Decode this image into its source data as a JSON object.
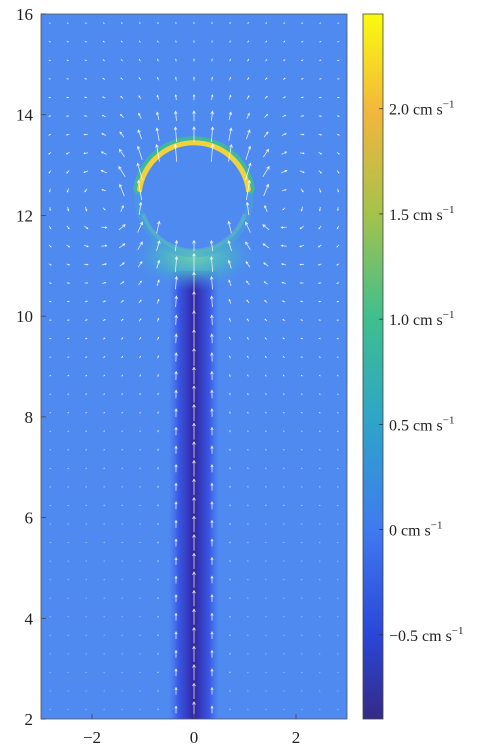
{
  "chart_data": {
    "type": "heatmap",
    "title": "",
    "xlabel": "",
    "ylabel": "",
    "xlim": [
      -3,
      3
    ],
    "ylim": [
      2,
      16
    ],
    "x_ticks": [
      {
        "value": -2,
        "label": "−2"
      },
      {
        "value": 0,
        "label": "0"
      },
      {
        "value": 2,
        "label": "2"
      }
    ],
    "y_ticks": [
      {
        "value": 2,
        "label": "2"
      },
      {
        "value": 4,
        "label": "4"
      },
      {
        "value": 6,
        "label": "6"
      },
      {
        "value": 8,
        "label": "8"
      },
      {
        "value": 10,
        "label": "10"
      },
      {
        "value": 12,
        "label": "12"
      },
      {
        "value": 14,
        "label": "14"
      },
      {
        "value": 16,
        "label": "16"
      }
    ],
    "colorbar": {
      "range": [
        -0.9,
        2.45
      ],
      "colormap": "parula",
      "ticks": [
        {
          "value": 2.0,
          "main": "2.0 cm s",
          "sup": "−1"
        },
        {
          "value": 1.5,
          "main": "1.5 cm s",
          "sup": "−1"
        },
        {
          "value": 1.0,
          "main": "1.0 cm s",
          "sup": "−1"
        },
        {
          "value": 0.5,
          "main": "0.5 cm s",
          "sup": "−1"
        },
        {
          "value": 0.0,
          "main": "0 cm s",
          "sup": "−1"
        },
        {
          "value": -0.5,
          "main": "−0.5 cm s",
          "sup": "−1"
        }
      ]
    },
    "background_value": 0.0,
    "features": {
      "bubble": {
        "center_x": 0,
        "center_y": 12.35,
        "radius": 1.05,
        "rim_peak_value": 2.3
      },
      "jet": {
        "half_width": 0.5,
        "x_center": 0,
        "y_start": 2,
        "y_end": 10.9,
        "core_value": -0.9
      },
      "wake_region": {
        "center_x": 0,
        "center_y": 11.2,
        "value": 0.9
      }
    },
    "quiver": {
      "color": "#ffffff",
      "description": "velocity vectors: strong upward flow through the jet column, vortex ring circulation around the bubble"
    }
  }
}
